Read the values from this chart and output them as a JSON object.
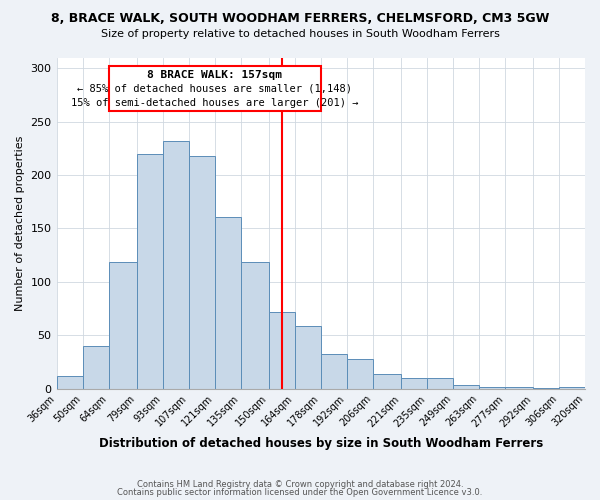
{
  "title1": "8, BRACE WALK, SOUTH WOODHAM FERRERS, CHELMSFORD, CM3 5GW",
  "title2": "Size of property relative to detached houses in South Woodham Ferrers",
  "xlabel": "Distribution of detached houses by size in South Woodham Ferrers",
  "ylabel": "Number of detached properties",
  "bin_labels": [
    "36sqm",
    "50sqm",
    "64sqm",
    "79sqm",
    "93sqm",
    "107sqm",
    "121sqm",
    "135sqm",
    "150sqm",
    "164sqm",
    "178sqm",
    "192sqm",
    "206sqm",
    "221sqm",
    "235sqm",
    "249sqm",
    "263sqm",
    "277sqm",
    "292sqm",
    "306sqm",
    "320sqm"
  ],
  "bar_values": [
    12,
    40,
    119,
    220,
    232,
    218,
    161,
    119,
    72,
    59,
    33,
    28,
    14,
    10,
    10,
    4,
    2,
    2,
    1,
    2
  ],
  "bar_color": "#c8d8e8",
  "bar_edge_color": "#5b8db8",
  "vline_x": 157,
  "bin_edges": [
    36,
    50,
    64,
    79,
    93,
    107,
    121,
    135,
    150,
    164,
    178,
    192,
    206,
    221,
    235,
    249,
    263,
    277,
    292,
    306,
    320
  ],
  "annotation_title": "8 BRACE WALK: 157sqm",
  "annotation_line1": "← 85% of detached houses are smaller (1,148)",
  "annotation_line2": "15% of semi-detached houses are larger (201) →",
  "ylim": [
    0,
    310
  ],
  "yticks": [
    0,
    50,
    100,
    150,
    200,
    250,
    300
  ],
  "footer1": "Contains HM Land Registry data © Crown copyright and database right 2024.",
  "footer2": "Contains public sector information licensed under the Open Government Licence v3.0.",
  "bg_color": "#eef2f7",
  "plot_bg_color": "#ffffff"
}
